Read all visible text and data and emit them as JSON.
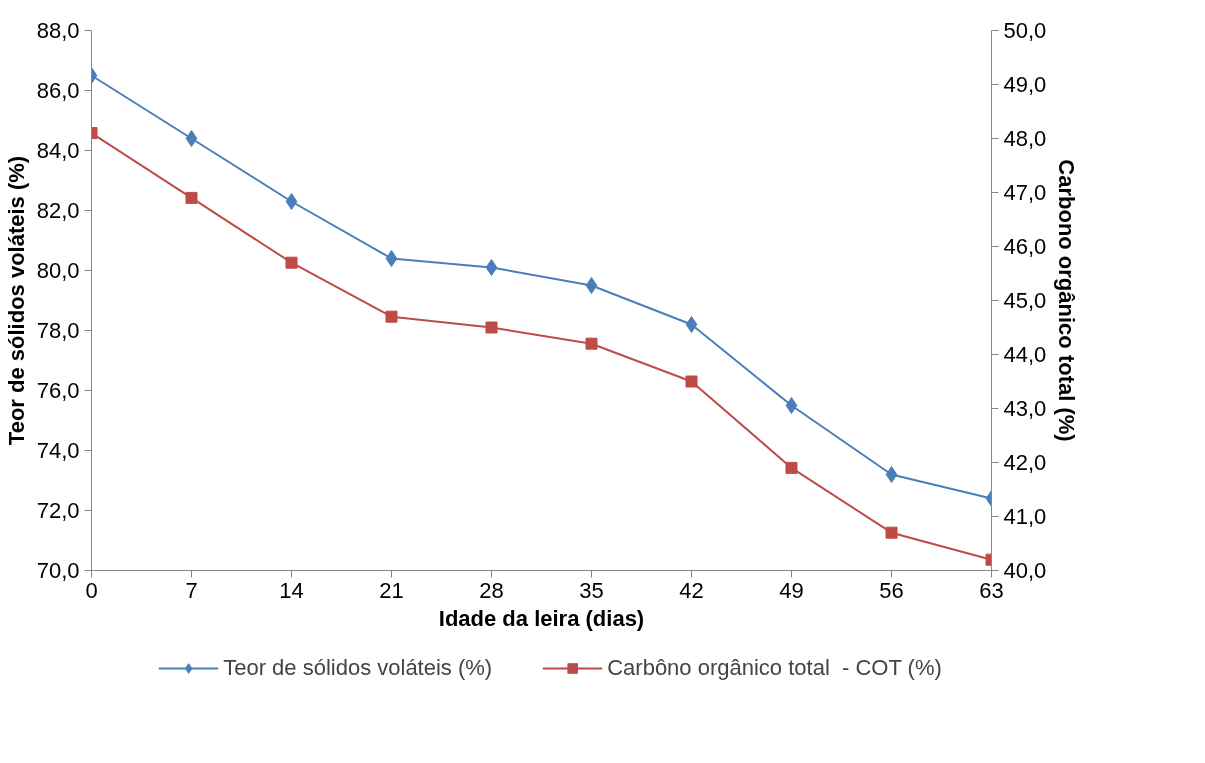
{
  "chart_data": {
    "type": "line",
    "xlabel": "Idade da leira (dias)",
    "ylabel": "Teor de sólidos voláteis (%)",
    "y2label": "Carbono orgânico total (%)",
    "x": [
      0,
      7,
      14,
      21,
      28,
      35,
      42,
      49,
      56,
      63
    ],
    "xlim": [
      0,
      63
    ],
    "xticks": [
      0,
      7,
      14,
      21,
      28,
      35,
      42,
      49,
      56,
      63
    ],
    "ylim": [
      70,
      88
    ],
    "yticks": [
      {
        "value": 70,
        "label": "70,0"
      },
      {
        "value": 72,
        "label": "72,0"
      },
      {
        "value": 74,
        "label": "74,0"
      },
      {
        "value": 76,
        "label": "76,0"
      },
      {
        "value": 78,
        "label": "78,0"
      },
      {
        "value": 80,
        "label": "80,0"
      },
      {
        "value": 82,
        "label": "82,0"
      },
      {
        "value": 84,
        "label": "84,0"
      },
      {
        "value": 86,
        "label": "86,0"
      },
      {
        "value": 88,
        "label": "88,0"
      }
    ],
    "y2lim": [
      40,
      50
    ],
    "y2ticks": [
      {
        "value": 40,
        "label": "40,0"
      },
      {
        "value": 41,
        "label": "41,0"
      },
      {
        "value": 42,
        "label": "42,0"
      },
      {
        "value": 43,
        "label": "43,0"
      },
      {
        "value": 44,
        "label": "44,0"
      },
      {
        "value": 45,
        "label": "45,0"
      },
      {
        "value": 46,
        "label": "46,0"
      },
      {
        "value": 47,
        "label": "47,0"
      },
      {
        "value": 48,
        "label": "48,0"
      },
      {
        "value": 49,
        "label": "49,0"
      },
      {
        "value": 50,
        "label": "50,0"
      }
    ],
    "series": [
      {
        "name": "Teor de sólidos voláteis (%)",
        "color": "#4a7ebb",
        "marker": "diamond",
        "values": [
          86.5,
          84.4,
          82.3,
          80.4,
          80.1,
          79.5,
          78.2,
          75.5,
          73.2,
          72.4
        ]
      },
      {
        "name": "Carbôno orgânico total  - COT (%)",
        "color": "#be4b48",
        "marker": "square",
        "axis": "y2",
        "values": [
          48.1,
          46.9,
          45.7,
          44.7,
          44.5,
          44.2,
          43.5,
          41.9,
          40.7,
          40.2
        ]
      }
    ],
    "grid": false,
    "legend": "bottom",
    "line_style": "solid"
  }
}
